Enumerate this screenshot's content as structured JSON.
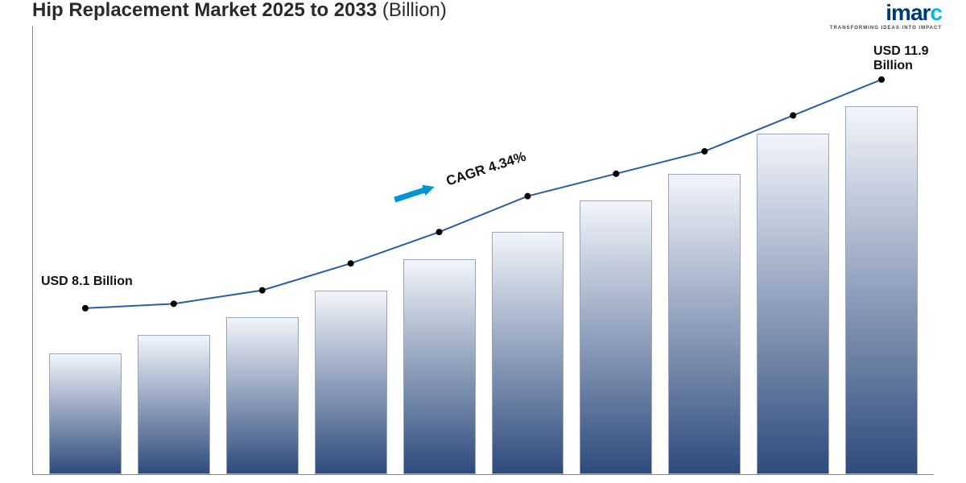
{
  "title": {
    "main": "Hip Replacement Market 2025 to 2033",
    "sub": "(Billion)",
    "fontsize": 24,
    "color": "#2a2a2a"
  },
  "logo": {
    "text": "imarc",
    "tag": "TRANSFORMING IDEAS INTO IMPACT",
    "colors": [
      "#003a78",
      "#003a78",
      "#003a78",
      "#003a78",
      "#00b9e4"
    ]
  },
  "chart": {
    "type": "bar+line",
    "n_bars": 10,
    "values_pct": [
      27,
      31,
      35,
      41,
      48,
      54,
      61,
      67,
      76,
      82
    ],
    "line_pct": [
      37,
      38,
      41,
      47,
      54,
      62,
      67,
      72,
      80,
      88
    ],
    "bar_gradient_top": "#f2f5fb",
    "bar_gradient_bottom": "#2e4b7c",
    "bar_border": "#9aa6bb",
    "axis_color": "#888888",
    "line_color": "#2a5da8",
    "line_width": 2,
    "marker_color": "#000000",
    "marker_radius": 4
  },
  "labels": {
    "start": "USD 8.1 Billion",
    "end": "USD 11.9\nBillion",
    "cagr": "CAGR 4.34%",
    "label_fontsize": 16,
    "cagr_fontsize": 17,
    "cagr_rotation_deg": -18
  },
  "arrow": {
    "color": "#0093d6",
    "length": 52,
    "width": 14,
    "rotation_deg": -18
  },
  "background": "#ffffff"
}
